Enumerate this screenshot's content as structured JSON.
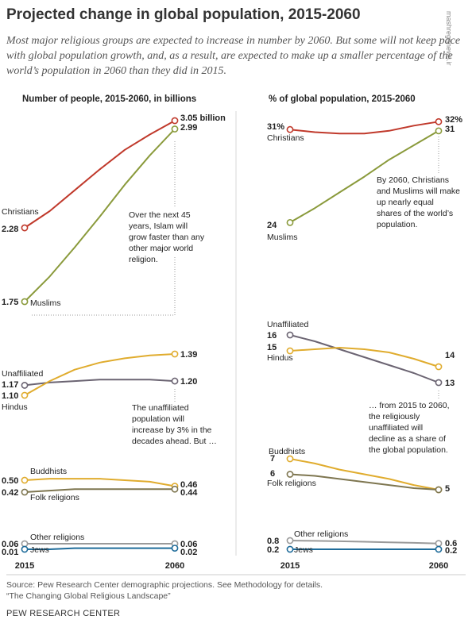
{
  "title": "Projected change in global population, 2015-2060",
  "subtitle": "Most major religious groups are expected to increase in number by 2060. But some will not keep pace with global population growth, and, as a result, are expected to make up a smaller percentage of the world’s population in 2060 than they did in 2015.",
  "watermark": "mashreghnews.ir",
  "source": "Source: Pew Research Center demographic projections. See Methodology for details.",
  "report": "“The Changing Global Religious Landscape”",
  "brand": "PEW RESEARCH CENTER",
  "colors": {
    "christians": "#c0392b",
    "muslims": "#8a9a3b",
    "hindus": "#e0ac2e",
    "unaffiliated": "#6b6472",
    "buddhists": "#e0ac2e",
    "folk": "#7e7650",
    "other": "#9a9a9a",
    "jews": "#1f6c9a"
  },
  "chart_data": [
    {
      "type": "line",
      "title": "Number of people, 2015-2060, in billions",
      "x": [
        "2015",
        "2060"
      ],
      "series": [
        {
          "name": "Christians",
          "color_key": "christians",
          "points": [
            2.28,
            2.4,
            2.55,
            2.7,
            2.84,
            2.95,
            3.05
          ],
          "labels": [
            "2.28",
            "3.05 billion"
          ]
        },
        {
          "name": "Muslims",
          "color_key": "muslims",
          "points": [
            1.75,
            1.93,
            2.14,
            2.36,
            2.59,
            2.8,
            2.99
          ],
          "labels": [
            "1.75",
            "2.99"
          ]
        },
        {
          "name": "Unaffiliated",
          "color_key": "unaffiliated",
          "points": [
            1.17,
            1.19,
            1.2,
            1.21,
            1.21,
            1.21,
            1.2
          ],
          "labels": [
            "1.17",
            "1.20"
          ]
        },
        {
          "name": "Hindus",
          "color_key": "hindus",
          "points": [
            1.1,
            1.2,
            1.28,
            1.33,
            1.36,
            1.38,
            1.39
          ],
          "labels": [
            "1.10",
            "1.39"
          ]
        },
        {
          "name": "Buddhists",
          "color_key": "buddhists",
          "points": [
            0.5,
            0.51,
            0.51,
            0.51,
            0.5,
            0.49,
            0.46
          ],
          "labels": [
            "0.50",
            "0.46"
          ]
        },
        {
          "name": "Folk religions",
          "color_key": "folk",
          "points": [
            0.42,
            0.43,
            0.44,
            0.44,
            0.44,
            0.44,
            0.44
          ],
          "labels": [
            "0.42",
            "0.44"
          ]
        },
        {
          "name": "Other religions",
          "color_key": "other",
          "points": [
            0.06,
            0.06,
            0.06,
            0.06,
            0.06,
            0.06,
            0.06
          ],
          "labels": [
            "0.06",
            "0.06"
          ]
        },
        {
          "name": "Jews",
          "color_key": "jews",
          "points": [
            0.01,
            0.01,
            0.02,
            0.02,
            0.02,
            0.02,
            0.02
          ],
          "labels": [
            "0.01",
            "0.02"
          ]
        }
      ],
      "annotations": [
        "Over the next 45 years, Islam will grow faster than any other major world religion.",
        "The unaffiliated population will increase by 3% in the decades ahead. But …"
      ]
    },
    {
      "type": "line",
      "title": "% of global population, 2015-2060",
      "x": [
        "2015",
        "2060"
      ],
      "series": [
        {
          "name": "Christians",
          "color_key": "christians",
          "points": [
            31.2,
            31.0,
            30.9,
            30.9,
            31.1,
            31.5,
            31.8
          ],
          "labels": [
            "31%",
            "32%"
          ]
        },
        {
          "name": "Muslims",
          "color_key": "muslims",
          "points": [
            24.1,
            25.2,
            26.4,
            27.6,
            28.9,
            30.0,
            31.1
          ],
          "labels": [
            "24",
            "31"
          ]
        },
        {
          "name": "Unaffiliated",
          "color_key": "unaffiliated",
          "points": [
            16,
            15.6,
            15.1,
            14.6,
            14.1,
            13.6,
            13
          ],
          "labels": [
            "16",
            "13"
          ]
        },
        {
          "name": "Hindus",
          "color_key": "hindus",
          "points": [
            15,
            15.1,
            15.2,
            15.1,
            14.9,
            14.5,
            14
          ],
          "labels": [
            "15",
            "14"
          ]
        },
        {
          "name": "Buddhists",
          "color_key": "buddhists",
          "points": [
            7,
            6.7,
            6.3,
            6,
            5.7,
            5.3,
            5
          ],
          "labels": [
            "7",
            ""
          ]
        },
        {
          "name": "Folk religions",
          "color_key": "folk",
          "points": [
            6,
            5.9,
            5.7,
            5.5,
            5.3,
            5.1,
            5
          ],
          "labels": [
            "6",
            "5"
          ]
        },
        {
          "name": "Other religions",
          "color_key": "other",
          "points": [
            0.8,
            0.78,
            0.75,
            0.72,
            0.68,
            0.64,
            0.6
          ],
          "labels": [
            "0.8",
            "0.6"
          ]
        },
        {
          "name": "Jews",
          "color_key": "jews",
          "points": [
            0.2,
            0.2,
            0.2,
            0.2,
            0.2,
            0.2,
            0.2
          ],
          "labels": [
            "0.2",
            "0.2"
          ]
        }
      ],
      "annotations": [
        "By 2060, Christians and Muslims will make up nearly equal shares of the world’s population.",
        "… from 2015 to 2060, the religiously unaffiliated will decline as a share of the global population."
      ]
    }
  ]
}
